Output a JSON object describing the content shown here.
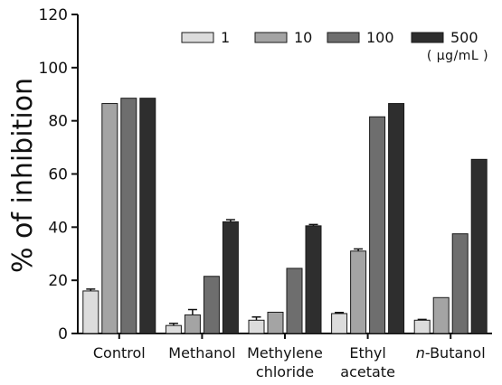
{
  "chart_data": {
    "type": "bar",
    "ylabel": "% of inhibition",
    "ylim": [
      0,
      120
    ],
    "yticks": [
      "0",
      "20",
      "40",
      "60",
      "80",
      "100",
      "120"
    ],
    "categories": [
      {
        "lines": [
          "Control"
        ],
        "italic_prefix": ""
      },
      {
        "lines": [
          "Methanol"
        ],
        "italic_prefix": ""
      },
      {
        "lines": [
          "Methylene",
          "chloride"
        ],
        "italic_prefix": ""
      },
      {
        "lines": [
          "Ethyl",
          "acetate"
        ],
        "italic_prefix": ""
      },
      {
        "lines": [
          "-Butanol"
        ],
        "italic_prefix": "n"
      }
    ],
    "legend_unit": "( µg/mL )",
    "legend_position": "top-right",
    "series": [
      {
        "name": "1",
        "color": "#dcdcdc",
        "values": [
          16,
          3,
          5,
          7.5,
          5
        ],
        "errors": [
          0.7,
          0.8,
          1.2,
          0.4,
          0.3
        ]
      },
      {
        "name": "10",
        "color": "#a4a4a4",
        "values": [
          86.5,
          7,
          8,
          31,
          13.5
        ],
        "errors": [
          0,
          2,
          0,
          0.8,
          0
        ]
      },
      {
        "name": "100",
        "color": "#6e6e6e",
        "values": [
          88.5,
          21.5,
          24.5,
          81.5,
          37.5
        ],
        "errors": [
          0,
          0,
          0,
          0,
          0
        ]
      },
      {
        "name": "500",
        "color": "#2e2e2e",
        "values": [
          88.5,
          42,
          40.5,
          86.5,
          65.5
        ],
        "errors": [
          0,
          0.8,
          0.5,
          0,
          0
        ]
      }
    ]
  }
}
